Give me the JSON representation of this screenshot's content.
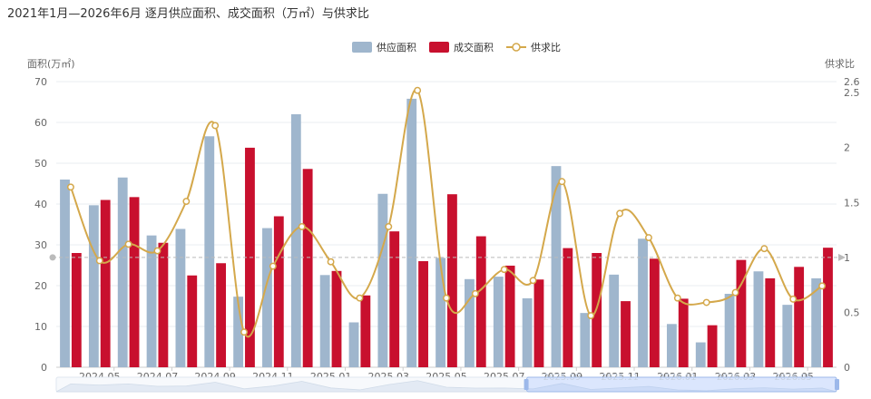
{
  "chart_data": {
    "type": "bar-line",
    "title": "2021年1月—2026年6月 逐月供应面积、成交面积（万㎡）与供求比",
    "legend_position": "top-center",
    "y_left": {
      "label": "面积(万㎡)",
      "ticks": [
        "0",
        "10",
        "20",
        "30",
        "40",
        "50",
        "60",
        "70"
      ],
      "range": [
        0,
        70
      ]
    },
    "y_right": {
      "label": "供求比",
      "ticks": [
        "0",
        "0.5",
        "1",
        "1.5",
        "2",
        "2.5",
        "2.6"
      ],
      "range": [
        0,
        2.6
      ]
    },
    "x_tick_labels": [
      "2024.05",
      "2024.07",
      "2024.09",
      "2024.11",
      "2025.01",
      "2025.03",
      "2025.05",
      "2025.07",
      "2025.09",
      "2025.11",
      "2026.01",
      "2026.03",
      "2026.05"
    ],
    "categories": [
      "2024.04",
      "2024.05",
      "2024.06",
      "2024.07",
      "2024.08",
      "2024.09",
      "2024.10",
      "2024.11",
      "2024.12",
      "2025.01",
      "2025.02",
      "2025.03",
      "2025.04",
      "2025.05",
      "2025.06",
      "2025.07",
      "2025.08",
      "2025.09",
      "2025.10",
      "2025.11",
      "2025.12",
      "2026.01",
      "2026.02",
      "2026.03",
      "2026.04",
      "2026.05",
      "2026.06"
    ],
    "series": [
      {
        "name": "供应面积",
        "type": "bar",
        "axis": "left",
        "color": "#9fb6cd",
        "values": [
          46,
          39.7,
          46.5,
          32.3,
          33.9,
          56.6,
          17.3,
          34.1,
          62,
          22.6,
          11,
          42.5,
          65.8,
          26.8,
          21.6,
          22.2,
          16.9,
          49.3,
          13.3,
          22.7,
          31.5,
          10.6,
          6.1,
          18,
          23.5,
          15.3,
          21.8
        ]
      },
      {
        "name": "成交面积",
        "type": "bar",
        "axis": "left",
        "color": "#c8102e",
        "values": [
          28,
          41,
          41.7,
          30.5,
          22.5,
          25.5,
          53.8,
          37,
          48.6,
          23.6,
          17.6,
          33.3,
          26,
          42.4,
          32.1,
          24.9,
          21.5,
          29.2,
          28,
          16.2,
          26.6,
          16.8,
          10.3,
          26.3,
          21.8,
          24.6,
          29.3
        ]
      },
      {
        "name": "供求比",
        "type": "line",
        "axis": "right",
        "color": "#d4a84b",
        "smooth": true,
        "values": [
          1.64,
          0.97,
          1.12,
          1.06,
          1.51,
          2.2,
          0.32,
          0.92,
          1.28,
          0.96,
          0.63,
          1.28,
          2.52,
          0.63,
          0.67,
          0.89,
          0.79,
          1.69,
          0.47,
          1.4,
          1.18,
          0.63,
          0.59,
          0.68,
          1.08,
          0.62,
          0.74
        ]
      }
    ],
    "reference_line": {
      "axis": "right",
      "value": 1,
      "label": "1",
      "style": "dashed"
    },
    "grid": true,
    "data_zoom": {
      "visible": true,
      "position": "bottom",
      "selection_labels": [
        "2025.09",
        "2025.11",
        "2026.01",
        "2026.03",
        "2026.05"
      ]
    }
  }
}
